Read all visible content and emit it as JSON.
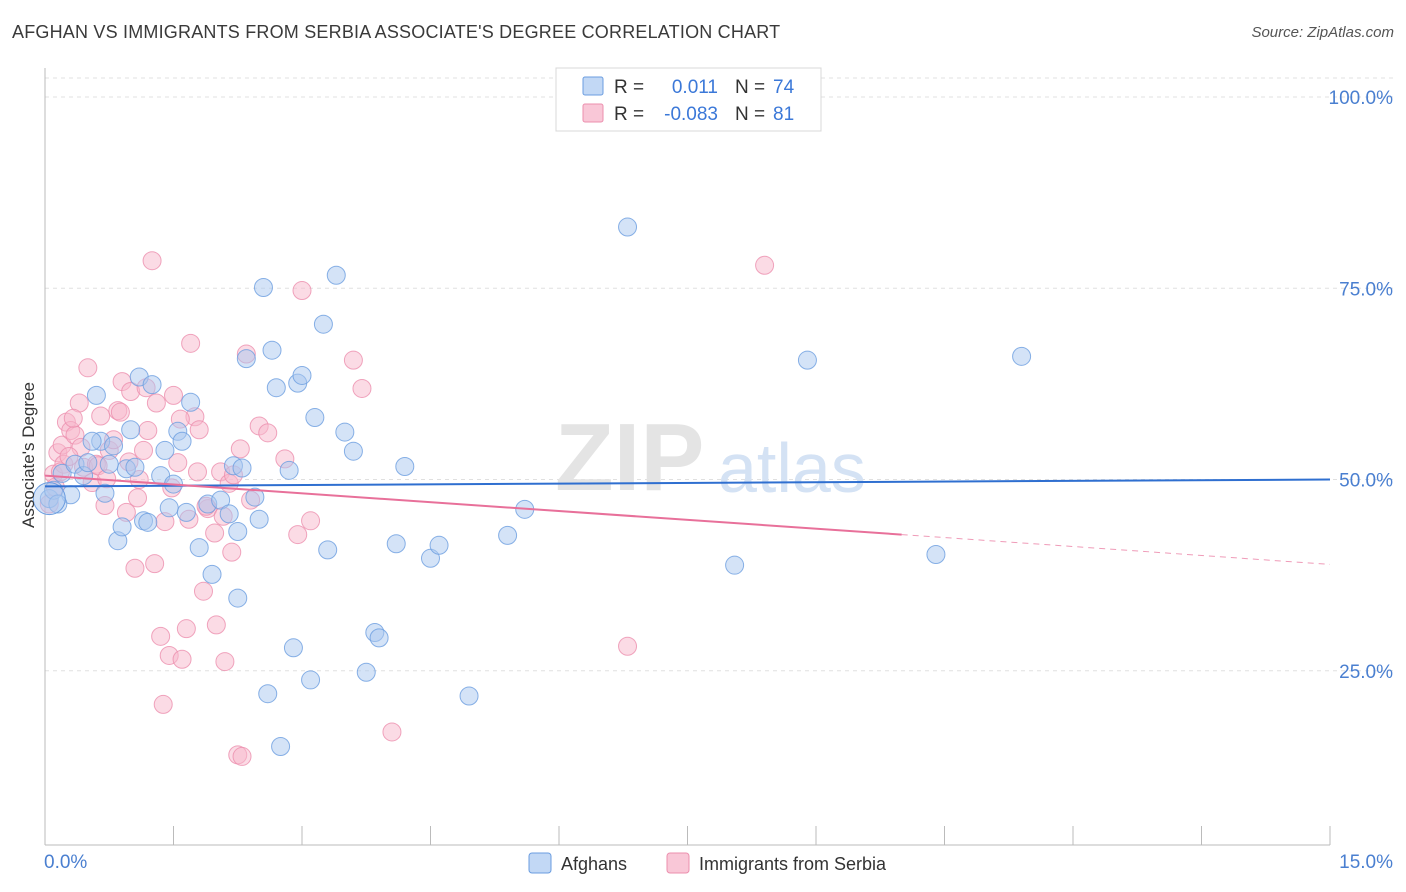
{
  "title": "AFGHAN VS IMMIGRANTS FROM SERBIA ASSOCIATE'S DEGREE CORRELATION CHART",
  "source": "Source: ZipAtlas.com",
  "watermark": {
    "zip": "ZIP",
    "atlas": "atlas"
  },
  "legend_top": {
    "rows": [
      {
        "r_label": "R =",
        "r_value": "0.011",
        "n_label": "N =",
        "n_value": "74"
      },
      {
        "r_label": "R =",
        "r_value": "-0.083",
        "n_label": "N =",
        "n_value": "81"
      }
    ]
  },
  "colors": {
    "blue": "#a9c8f0",
    "blue_stroke": "#6b9de0",
    "blue_line": "#2f6fd0",
    "pink": "#f7b8cc",
    "pink_stroke": "#ec8fae",
    "pink_line": "#e8709a"
  },
  "chart_data": {
    "type": "scatter",
    "title": "AFGHAN VS IMMIGRANTS FROM SERBIA ASSOCIATE'S DEGREE CORRELATION CHART",
    "xlabel": "",
    "ylabel": "Associate's Degree",
    "xlim": [
      0,
      15
    ],
    "ylim": [
      0,
      105
    ],
    "x_tick_labels": {
      "left": "0.0%",
      "right": "15.0%"
    },
    "y_ticks": [
      {
        "value": 25,
        "label": "25.0%"
      },
      {
        "value": 50,
        "label": "50.0%"
      },
      {
        "value": 75,
        "label": "75.0%"
      },
      {
        "value": 100,
        "label": "100.0%"
      }
    ],
    "legend_bottom": [
      "Afghans",
      "Immigrants from Serbia"
    ],
    "series": [
      {
        "name": "Afghans",
        "trend": {
          "x0": 0,
          "y0": 49.1,
          "x1": 15,
          "y1": 50.0
        },
        "points": [
          [
            0.05,
            47.5
          ],
          [
            0.1,
            48.6
          ],
          [
            0.2,
            50.8
          ],
          [
            0.35,
            52.0
          ],
          [
            0.45,
            50.5
          ],
          [
            0.5,
            52.2
          ],
          [
            0.6,
            61.0
          ],
          [
            0.65,
            55.0
          ],
          [
            0.7,
            48.2
          ],
          [
            0.8,
            54.4
          ],
          [
            0.85,
            42.0
          ],
          [
            0.9,
            43.8
          ],
          [
            0.95,
            51.4
          ],
          [
            1.0,
            56.5
          ],
          [
            1.1,
            63.4
          ],
          [
            1.15,
            44.6
          ],
          [
            1.2,
            44.4
          ],
          [
            1.25,
            62.4
          ],
          [
            1.35,
            50.5
          ],
          [
            1.4,
            53.8
          ],
          [
            1.45,
            46.3
          ],
          [
            1.5,
            49.4
          ],
          [
            1.55,
            56.3
          ],
          [
            1.6,
            55.0
          ],
          [
            1.65,
            45.7
          ],
          [
            1.7,
            60.1
          ],
          [
            1.8,
            41.1
          ],
          [
            1.9,
            46.8
          ],
          [
            1.95,
            37.6
          ],
          [
            2.05,
            47.3
          ],
          [
            2.15,
            45.5
          ],
          [
            2.2,
            51.8
          ],
          [
            2.25,
            43.2
          ],
          [
            2.25,
            34.5
          ],
          [
            2.3,
            51.5
          ],
          [
            2.35,
            65.8
          ],
          [
            2.45,
            47.7
          ],
          [
            2.5,
            44.8
          ],
          [
            2.55,
            75.1
          ],
          [
            2.6,
            22.0
          ],
          [
            2.65,
            66.9
          ],
          [
            2.7,
            62.0
          ],
          [
            2.75,
            15.1
          ],
          [
            2.85,
            51.2
          ],
          [
            2.9,
            28.0
          ],
          [
            2.95,
            62.6
          ],
          [
            3.0,
            63.6
          ],
          [
            3.1,
            23.8
          ],
          [
            3.15,
            58.1
          ],
          [
            3.25,
            70.3
          ],
          [
            3.3,
            40.8
          ],
          [
            3.4,
            76.7
          ],
          [
            3.5,
            56.2
          ],
          [
            3.6,
            53.7
          ],
          [
            3.75,
            24.8
          ],
          [
            3.85,
            30.0
          ],
          [
            3.9,
            29.3
          ],
          [
            4.1,
            41.6
          ],
          [
            4.2,
            51.7
          ],
          [
            4.5,
            39.7
          ],
          [
            4.6,
            41.4
          ],
          [
            4.95,
            21.7
          ],
          [
            5.4,
            42.7
          ],
          [
            5.6,
            46.1
          ],
          [
            6.8,
            83.0
          ],
          [
            8.05,
            38.8
          ],
          [
            8.9,
            65.6
          ],
          [
            10.4,
            40.2
          ],
          [
            11.4,
            66.1
          ],
          [
            0.3,
            48.0
          ],
          [
            0.15,
            46.8
          ],
          [
            0.75,
            52.0
          ],
          [
            1.05,
            51.6
          ],
          [
            0.55,
            55.0
          ]
        ]
      },
      {
        "name": "Immigrants from Serbia",
        "trend": {
          "x0": 0,
          "y0": 50.5,
          "x1": 10.0,
          "y1": 42.8,
          "dash_to": {
            "x": 15,
            "y": 38.9
          }
        },
        "points": [
          [
            0.05,
            46.8
          ],
          [
            0.1,
            50.7
          ],
          [
            0.15,
            53.5
          ],
          [
            0.2,
            54.5
          ],
          [
            0.25,
            57.5
          ],
          [
            0.3,
            56.4
          ],
          [
            0.35,
            55.8
          ],
          [
            0.4,
            60.0
          ],
          [
            0.45,
            51.6
          ],
          [
            0.5,
            64.6
          ],
          [
            0.55,
            49.6
          ],
          [
            0.6,
            52.0
          ],
          [
            0.65,
            58.3
          ],
          [
            0.7,
            46.6
          ],
          [
            0.75,
            53.8
          ],
          [
            0.8,
            55.2
          ],
          [
            0.85,
            59.0
          ],
          [
            0.9,
            62.8
          ],
          [
            0.95,
            45.7
          ],
          [
            1.0,
            61.5
          ],
          [
            1.05,
            38.4
          ],
          [
            1.1,
            50.0
          ],
          [
            1.15,
            53.8
          ],
          [
            1.2,
            56.4
          ],
          [
            1.25,
            78.6
          ],
          [
            1.3,
            60.0
          ],
          [
            1.35,
            29.5
          ],
          [
            1.4,
            44.5
          ],
          [
            1.45,
            27.0
          ],
          [
            1.5,
            61.0
          ],
          [
            1.55,
            52.2
          ],
          [
            1.6,
            26.5
          ],
          [
            1.65,
            30.5
          ],
          [
            1.7,
            67.8
          ],
          [
            1.75,
            58.2
          ],
          [
            1.8,
            56.5
          ],
          [
            1.85,
            35.4
          ],
          [
            1.9,
            46.2
          ],
          [
            2.0,
            31.0
          ],
          [
            2.05,
            51.0
          ],
          [
            2.1,
            26.2
          ],
          [
            2.15,
            49.5
          ],
          [
            2.2,
            50.6
          ],
          [
            2.25,
            14.0
          ],
          [
            2.3,
            13.8
          ],
          [
            2.35,
            66.4
          ],
          [
            2.4,
            47.3
          ],
          [
            2.5,
            57.0
          ],
          [
            2.6,
            56.1
          ],
          [
            2.8,
            52.7
          ],
          [
            2.95,
            42.8
          ],
          [
            3.0,
            74.7
          ],
          [
            3.1,
            44.6
          ],
          [
            3.6,
            65.6
          ],
          [
            3.7,
            61.9
          ],
          [
            4.05,
            17.0
          ],
          [
            6.8,
            28.2
          ],
          [
            8.4,
            78.0
          ],
          [
            0.22,
            52.0
          ],
          [
            0.33,
            58.0
          ],
          [
            0.42,
            54.2
          ],
          [
            0.62,
            51.8
          ],
          [
            0.72,
            50.1
          ],
          [
            0.88,
            58.8
          ],
          [
            0.98,
            52.3
          ],
          [
            1.08,
            47.6
          ],
          [
            1.18,
            62.0
          ],
          [
            1.28,
            39.0
          ],
          [
            1.38,
            20.6
          ],
          [
            1.48,
            48.9
          ],
          [
            1.58,
            57.9
          ],
          [
            1.68,
            44.8
          ],
          [
            1.78,
            51.0
          ],
          [
            1.88,
            46.5
          ],
          [
            1.98,
            43.0
          ],
          [
            2.08,
            45.2
          ],
          [
            2.18,
            40.5
          ],
          [
            2.28,
            54.0
          ],
          [
            0.12,
            49.0
          ],
          [
            0.18,
            51.0
          ],
          [
            0.28,
            53.0
          ]
        ]
      }
    ]
  }
}
